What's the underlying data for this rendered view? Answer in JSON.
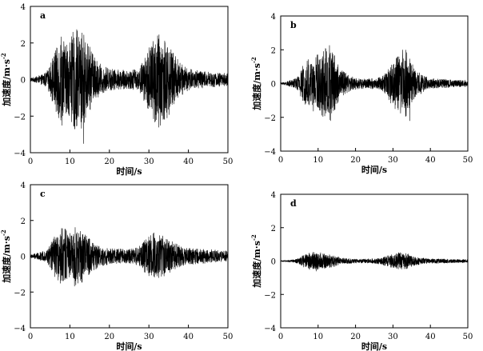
{
  "chart_data": [
    {
      "type": "line",
      "panel_label": "a",
      "xlabel": "时间/s",
      "ylabel": "加速度/m·s",
      "ylabel_exponent": "-2",
      "xlim": [
        0,
        50
      ],
      "ylim": [
        -4,
        4
      ],
      "x_ticks": [
        0,
        10,
        20,
        30,
        40,
        50
      ],
      "y_ticks": [
        -4,
        -2,
        0,
        2,
        4
      ],
      "grid": false,
      "series": [
        {
          "x": [
            0,
            2,
            4,
            5,
            6,
            7,
            8,
            9,
            10,
            11,
            12,
            13,
            14,
            15,
            16,
            18,
            20,
            22,
            25,
            27,
            28,
            29,
            30,
            31,
            32,
            33,
            34,
            35,
            36,
            38,
            40,
            44,
            47,
            50
          ],
          "envelope": [
            0.1,
            0.2,
            0.4,
            0.8,
            1.6,
            2.4,
            2.6,
            2.3,
            2.1,
            2.8,
            2.6,
            2.9,
            2.2,
            1.8,
            1.3,
            0.8,
            0.6,
            0.55,
            0.5,
            0.6,
            0.8,
            1.3,
            1.9,
            2.4,
            2.8,
            2.6,
            2.4,
            2.0,
            1.5,
            0.9,
            0.6,
            0.45,
            0.4,
            0.35
          ],
          "min_y": -3.5,
          "min_x": 13.5
        }
      ]
    },
    {
      "type": "line",
      "panel_label": "b",
      "xlabel": "时间/s",
      "ylabel": "加速度/m·s",
      "ylabel_exponent": "-2",
      "xlim": [
        0,
        50
      ],
      "ylim": [
        -4,
        4
      ],
      "x_ticks": [
        0,
        10,
        20,
        30,
        40,
        50
      ],
      "y_ticks": [
        -4,
        -2,
        0,
        2,
        4
      ],
      "grid": false,
      "series": [
        {
          "x": [
            0,
            2,
            4,
            5,
            6,
            7,
            8,
            9,
            10,
            11,
            12,
            13,
            14,
            15,
            16,
            18,
            20,
            22,
            25,
            27,
            28,
            29,
            30,
            31,
            32,
            33,
            34,
            35,
            36,
            38,
            40,
            44,
            47,
            50
          ],
          "envelope": [
            0.05,
            0.15,
            0.3,
            0.6,
            1.1,
            1.5,
            1.6,
            1.7,
            1.8,
            2.0,
            2.1,
            2.6,
            1.9,
            1.4,
            0.9,
            0.5,
            0.35,
            0.3,
            0.3,
            0.4,
            0.6,
            1.0,
            1.4,
            1.6,
            1.8,
            2.2,
            1.7,
            1.3,
            0.9,
            0.5,
            0.3,
            0.25,
            0.2,
            0.2
          ],
          "min_y": -2.2,
          "min_x": 34.5
        }
      ]
    },
    {
      "type": "line",
      "panel_label": "c",
      "xlabel": "时间/s",
      "ylabel": "加速度/m·s",
      "ylabel_exponent": "-2",
      "xlim": [
        0,
        50
      ],
      "ylim": [
        -4,
        4
      ],
      "x_ticks": [
        0,
        10,
        20,
        30,
        40,
        50
      ],
      "y_ticks": [
        -4,
        -2,
        0,
        2,
        4
      ],
      "grid": false,
      "series": [
        {
          "x": [
            0,
            2,
            4,
            5,
            6,
            7,
            8,
            9,
            10,
            11,
            12,
            13,
            14,
            15,
            16,
            18,
            20,
            22,
            25,
            27,
            28,
            29,
            30,
            31,
            32,
            33,
            34,
            35,
            36,
            38,
            40,
            44,
            47,
            50
          ],
          "envelope": [
            0.1,
            0.2,
            0.35,
            0.7,
            1.1,
            1.4,
            1.6,
            1.5,
            1.4,
            1.7,
            1.6,
            1.5,
            1.2,
            1.0,
            0.8,
            0.55,
            0.45,
            0.4,
            0.4,
            0.5,
            0.7,
            0.9,
            1.1,
            1.3,
            1.2,
            1.3,
            1.1,
            1.0,
            0.8,
            0.6,
            0.45,
            0.4,
            0.35,
            0.3
          ],
          "min_y": -1.6,
          "min_x": 11.5
        }
      ]
    },
    {
      "type": "line",
      "panel_label": "d",
      "xlabel": "时间/s",
      "ylabel": "加速度/m·s",
      "ylabel_exponent": "-2",
      "xlim": [
        0,
        50
      ],
      "ylim": [
        -4,
        4
      ],
      "x_ticks": [
        0,
        10,
        20,
        30,
        40,
        50
      ],
      "y_ticks": [
        -4,
        -2,
        0,
        2,
        4
      ],
      "grid": false,
      "series": [
        {
          "x": [
            0,
            2,
            4,
            5,
            6,
            7,
            8,
            9,
            10,
            11,
            12,
            13,
            14,
            15,
            16,
            18,
            20,
            22,
            25,
            27,
            28,
            29,
            30,
            31,
            32,
            33,
            34,
            35,
            36,
            38,
            40,
            44,
            47,
            50
          ],
          "envelope": [
            0.03,
            0.05,
            0.1,
            0.2,
            0.35,
            0.45,
            0.5,
            0.55,
            0.5,
            0.5,
            0.45,
            0.4,
            0.35,
            0.3,
            0.2,
            0.15,
            0.12,
            0.12,
            0.15,
            0.2,
            0.3,
            0.35,
            0.4,
            0.45,
            0.55,
            0.5,
            0.45,
            0.35,
            0.25,
            0.18,
            0.15,
            0.12,
            0.1,
            0.1
          ],
          "min_y": -0.6,
          "min_x": 9.5
        }
      ]
    }
  ]
}
